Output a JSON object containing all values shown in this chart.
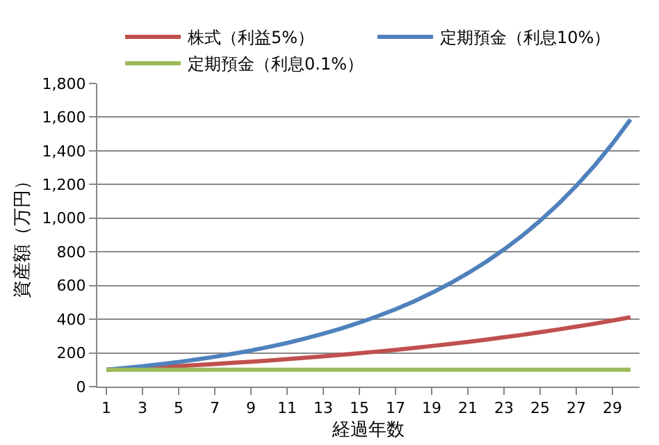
{
  "chart_data": {
    "type": "line",
    "xlabel": "経過年数",
    "ylabel": "資産額（万円）",
    "x": [
      1,
      2,
      3,
      4,
      5,
      6,
      7,
      8,
      9,
      10,
      11,
      12,
      13,
      14,
      15,
      16,
      17,
      18,
      19,
      20,
      21,
      22,
      23,
      24,
      25,
      26,
      27,
      28,
      29,
      30
    ],
    "xlim": [
      0.5,
      30.5
    ],
    "xticks": [
      1,
      3,
      5,
      7,
      9,
      11,
      13,
      15,
      17,
      19,
      21,
      23,
      25,
      27,
      29
    ],
    "ylim": [
      0,
      1800
    ],
    "yticks": [
      {
        "value": 0,
        "label": "0"
      },
      {
        "value": 200,
        "label": "200"
      },
      {
        "value": 400,
        "label": "400"
      },
      {
        "value": 600,
        "label": "600"
      },
      {
        "value": 800,
        "label": "800"
      },
      {
        "value": 1000,
        "label": "1,000"
      },
      {
        "value": 1200,
        "label": "1,200"
      },
      {
        "value": 1400,
        "label": "1,400"
      },
      {
        "value": 1600,
        "label": "1,600"
      },
      {
        "value": 1800,
        "label": "1,800"
      }
    ],
    "grid": "y",
    "legend": "top",
    "marker": "none",
    "line_style": "solid",
    "series": [
      {
        "name": "株式（利益5%）",
        "color": "#c0504d",
        "values": [
          100,
          105,
          110,
          116,
          122,
          128,
          134,
          141,
          148,
          155,
          163,
          171,
          180,
          189,
          198,
          208,
          218,
          229,
          241,
          253,
          265,
          279,
          293,
          307,
          323,
          339,
          356,
          373,
          392,
          412
        ]
      },
      {
        "name": "定期預金（利息10%）",
        "color": "#4f81bd",
        "values": [
          100,
          110,
          121,
          133,
          146,
          161,
          177,
          195,
          214,
          236,
          259,
          285,
          314,
          345,
          380,
          418,
          459,
          505,
          556,
          612,
          673,
          740,
          814,
          895,
          985,
          1083,
          1192,
          1311,
          1442,
          1586
        ]
      },
      {
        "name": "定期預金（利息0.1%）",
        "color": "#9bbb59",
        "values": [
          100,
          100,
          100,
          100,
          100,
          100,
          100,
          100,
          100,
          100,
          100,
          100,
          100,
          100,
          100,
          100,
          100,
          100,
          100,
          100,
          100,
          100,
          100,
          100,
          100,
          100,
          100,
          100,
          100,
          100
        ]
      }
    ]
  }
}
